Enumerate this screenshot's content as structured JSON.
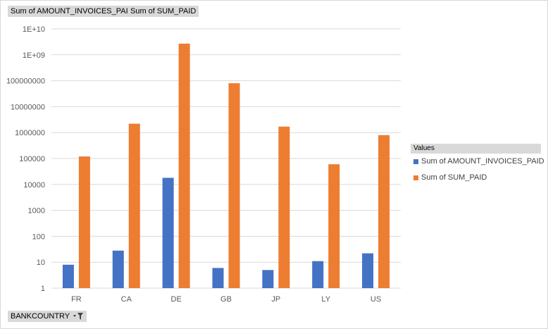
{
  "field_buttons": {
    "series_a": "Sum of AMOUNT_INVOICES_PAID",
    "series_b": "Sum of SUM_PAID",
    "axis_field": "BANKCOUNTRY"
  },
  "legend": {
    "title": "Values",
    "items": [
      {
        "label": "Sum of AMOUNT_INVOICES_PAID",
        "color": "#4472c4"
      },
      {
        "label": "Sum of SUM_PAID",
        "color": "#ed7d31"
      }
    ]
  },
  "chart_data": {
    "type": "bar",
    "scale": "log",
    "grid": true,
    "legend_position": "right",
    "categories": [
      "FR",
      "CA",
      "DE",
      "GB",
      "JP",
      "LY",
      "US"
    ],
    "y_ticks": [
      "1",
      "10",
      "100",
      "1000",
      "10000",
      "100000",
      "1000000",
      "10000000",
      "100000000",
      "1E+09",
      "1E+10"
    ],
    "ylim": [
      1,
      10000000000
    ],
    "series": [
      {
        "name": "Sum of AMOUNT_INVOICES_PAID",
        "color": "#4472c4",
        "values": [
          8,
          28,
          18000,
          6,
          5,
          11,
          22
        ]
      },
      {
        "name": "Sum of SUM_PAID",
        "color": "#ed7d31",
        "values": [
          120000,
          2200000,
          2700000000,
          80000000,
          1700000,
          60000,
          800000
        ]
      }
    ]
  }
}
